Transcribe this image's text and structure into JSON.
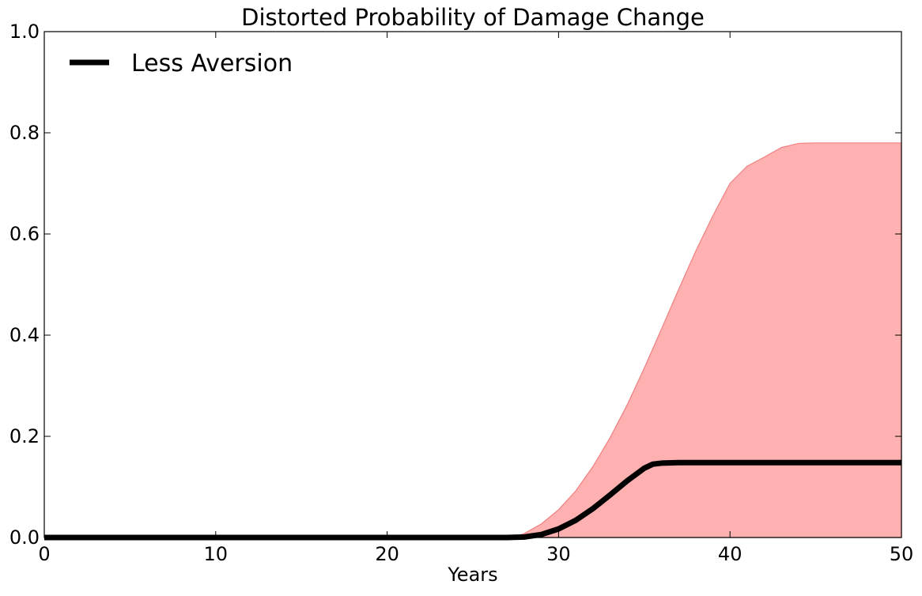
{
  "chart_data": {
    "type": "line",
    "title": "Distorted Probability of Damage Change",
    "xlabel": "Years",
    "ylabel": "",
    "xlim": [
      0,
      50
    ],
    "ylim": [
      0,
      1.0
    ],
    "xticks": [
      0,
      10,
      20,
      30,
      40,
      50
    ],
    "xtick_labels": [
      "0",
      "10",
      "20",
      "30",
      "40",
      "50"
    ],
    "yticks": [
      0.0,
      0.2,
      0.4,
      0.6,
      0.8,
      1.0
    ],
    "ytick_labels": [
      "0.0",
      "0.2",
      "0.4",
      "0.6",
      "0.8",
      "1.0"
    ],
    "grid": false,
    "legend": {
      "placement": "top-left",
      "entries": [
        "Less Aversion"
      ]
    },
    "series": [
      {
        "name": "Less Aversion",
        "color": "#000000",
        "x": [
          0,
          5,
          10,
          15,
          20,
          25,
          26,
          27,
          28,
          29,
          30,
          31,
          32,
          33,
          34,
          35,
          35.5,
          36,
          37,
          38,
          40,
          42,
          44,
          46,
          48,
          50
        ],
        "y": [
          0,
          0,
          0,
          0,
          0,
          0,
          0,
          0,
          0.001,
          0.006,
          0.017,
          0.034,
          0.057,
          0.084,
          0.112,
          0.137,
          0.145,
          0.147,
          0.148,
          0.148,
          0.148,
          0.148,
          0.148,
          0.148,
          0.148,
          0.148
        ]
      }
    ],
    "band": {
      "color": "#ffb0b0",
      "edge_color": "#f08080",
      "x": [
        0,
        25,
        26,
        27,
        27.5,
        28,
        29,
        30,
        31,
        32,
        33,
        34,
        35,
        36,
        37,
        38,
        39,
        40,
        41,
        42,
        43,
        44,
        45,
        46,
        48,
        50
      ],
      "lower": [
        0,
        0,
        0,
        0,
        0,
        0,
        0,
        0,
        0,
        0,
        0,
        0,
        0,
        0,
        0,
        0,
        0,
        0,
        0,
        0,
        0,
        0,
        0,
        0,
        0,
        0
      ],
      "upper": [
        0,
        0,
        0,
        0,
        0.002,
        0.008,
        0.027,
        0.055,
        0.092,
        0.14,
        0.197,
        0.262,
        0.335,
        0.412,
        0.49,
        0.566,
        0.636,
        0.7,
        0.734,
        0.752,
        0.771,
        0.779,
        0.78,
        0.78,
        0.78,
        0.78
      ]
    }
  }
}
